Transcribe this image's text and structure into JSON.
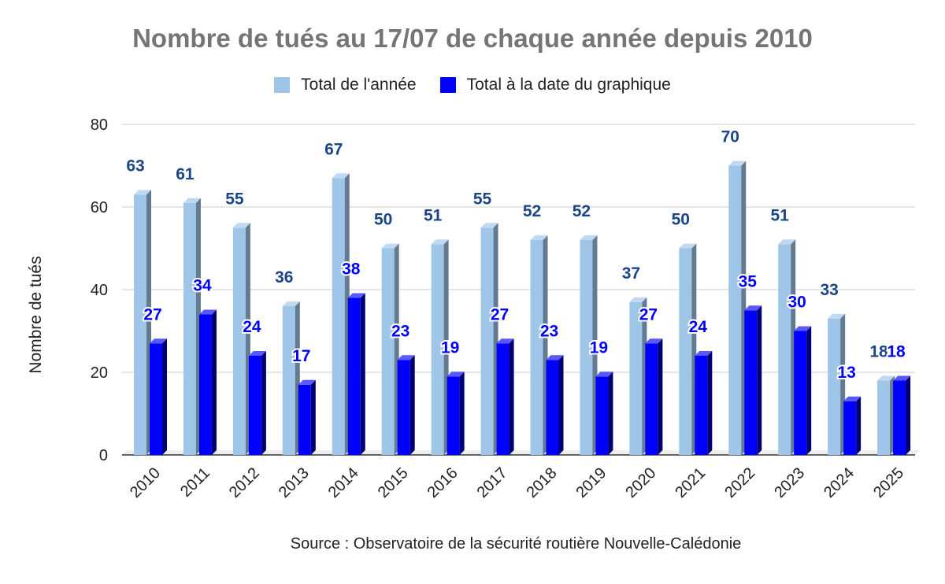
{
  "chart_data": {
    "type": "bar",
    "title": "Nombre de tués au 17/07 de chaque année depuis 2010",
    "ylabel": "Nombre de tués",
    "xlabel": "",
    "source": "Source : Observatoire de la sécurité routière Nouvelle-Calédonie",
    "categories": [
      "2010",
      "2011",
      "2012",
      "2013",
      "2014",
      "2015",
      "2016",
      "2017",
      "2018",
      "2019",
      "2020",
      "2021",
      "2022",
      "2023",
      "2024",
      "2025"
    ],
    "series": [
      {
        "name": "Total de l'année",
        "color": "#9fc5e8",
        "label_color": "#1c4587",
        "values": [
          63,
          61,
          55,
          36,
          67,
          50,
          51,
          55,
          52,
          52,
          37,
          50,
          70,
          51,
          33,
          18
        ]
      },
      {
        "name": "Total à la date du graphique",
        "color": "#0000ff",
        "label_color": "#0000ff",
        "values": [
          27,
          34,
          24,
          17,
          38,
          23,
          19,
          27,
          23,
          19,
          27,
          24,
          35,
          30,
          13,
          18
        ]
      }
    ],
    "ylim": [
      0,
      80
    ],
    "yticks": [
      0,
      20,
      40,
      60,
      80
    ],
    "grid": true,
    "legend_position": "top",
    "style": "3d-bar"
  }
}
